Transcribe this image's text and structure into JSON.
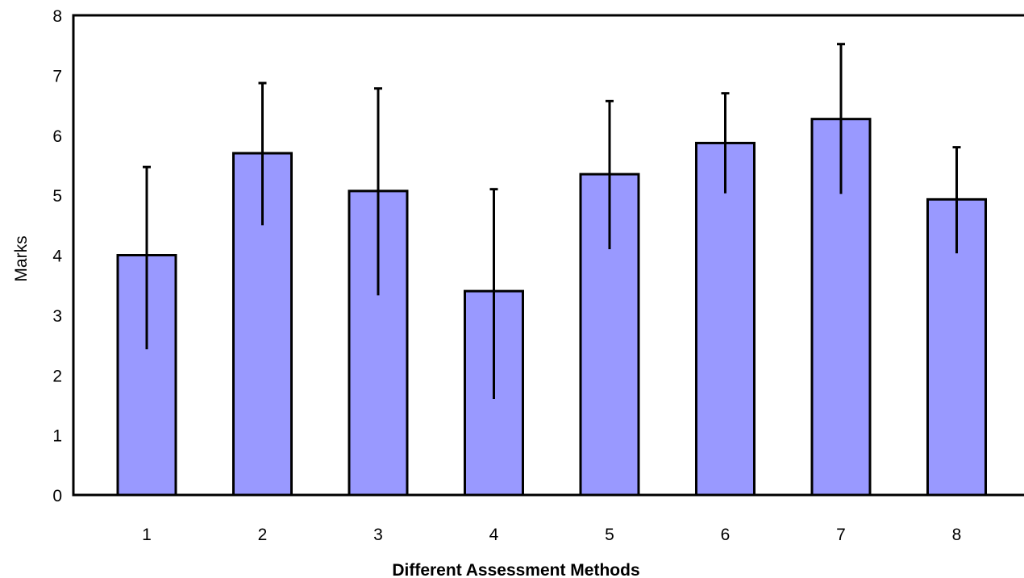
{
  "chart_data": {
    "type": "bar",
    "title": "",
    "xlabel": "Different Assessment Methods",
    "ylabel": "Marks",
    "categories": [
      "1",
      "2",
      "3",
      "4",
      "5",
      "6",
      "7",
      "8"
    ],
    "values": [
      4.0,
      5.7,
      5.07,
      3.4,
      5.35,
      5.87,
      6.27,
      4.93
    ],
    "error_upper": [
      5.47,
      6.87,
      6.78,
      5.1,
      6.57,
      6.7,
      7.52,
      5.8
    ],
    "error_lower": [
      2.43,
      4.5,
      3.33,
      1.6,
      4.1,
      5.03,
      5.02,
      4.03
    ],
    "yticks": [
      "0",
      "1",
      "2",
      "3",
      "4",
      "5",
      "6",
      "7",
      "8"
    ],
    "ylim": [
      0,
      8
    ],
    "grid": false,
    "legend": "none",
    "colors": {
      "bar_fill": "#9999ff",
      "bar_stroke": "#000000",
      "error_bar": "#000000",
      "axis": "#000000"
    }
  }
}
